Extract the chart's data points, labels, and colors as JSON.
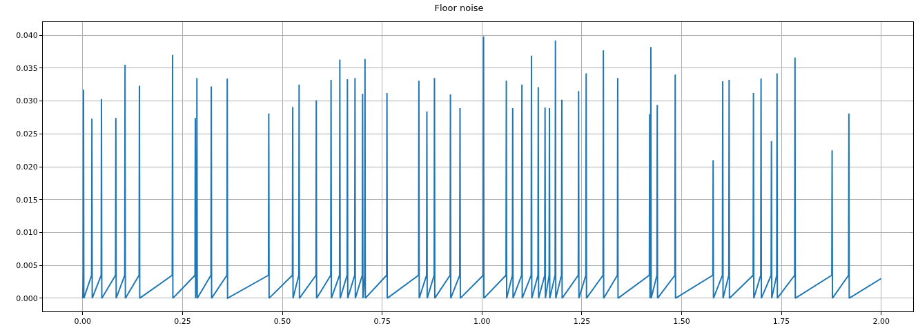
{
  "chart_data": {
    "type": "line",
    "title": "Floor noise",
    "x": [
      0.0,
      0.0012,
      0.002,
      0.0028,
      0.0222,
      0.023,
      0.0238,
      0.0462,
      0.047,
      0.0478,
      0.0822,
      0.083,
      0.0838,
      0.1052,
      0.106,
      0.1068,
      0.1412,
      0.142,
      0.1428,
      0.2242,
      0.225,
      0.2258,
      0.2812,
      0.282,
      0.2828,
      0.2852,
      0.286,
      0.2868,
      0.3212,
      0.322,
      0.3228,
      0.3612,
      0.362,
      0.3628,
      0.4652,
      0.466,
      0.4668,
      0.5252,
      0.526,
      0.5268,
      0.5412,
      0.542,
      0.5428,
      0.5842,
      0.585,
      0.5858,
      0.6212,
      0.622,
      0.6228,
      0.6432,
      0.644,
      0.6448,
      0.6622,
      0.663,
      0.6638,
      0.6812,
      0.682,
      0.6828,
      0.7002,
      0.701,
      0.7018,
      0.7062,
      0.707,
      0.7078,
      0.7612,
      0.762,
      0.7628,
      0.8412,
      0.842,
      0.8428,
      0.8612,
      0.862,
      0.8628,
      0.8802,
      0.881,
      0.8818,
      0.9202,
      0.921,
      0.9218,
      0.9442,
      0.945,
      0.9458,
      1.0032,
      1.004,
      1.0048,
      1.0602,
      1.061,
      1.0618,
      1.0762,
      1.077,
      1.0778,
      1.0992,
      1.1,
      1.1008,
      1.1232,
      1.124,
      1.1248,
      1.1402,
      1.141,
      1.1418,
      1.1572,
      1.158,
      1.1588,
      1.1682,
      1.169,
      1.1698,
      1.1832,
      1.184,
      1.1848,
      1.1992,
      1.2,
      1.2008,
      1.2412,
      1.242,
      1.2428,
      1.2602,
      1.261,
      1.2618,
      1.3032,
      1.304,
      1.3048,
      1.3392,
      1.34,
      1.3408,
      1.4192,
      1.42,
      1.4208,
      1.4222,
      1.423,
      1.4238,
      1.4382,
      1.439,
      1.4398,
      1.4832,
      1.484,
      1.4848,
      1.5782,
      1.579,
      1.5798,
      1.6022,
      1.603,
      1.6038,
      1.6182,
      1.619,
      1.6198,
      1.6792,
      1.68,
      1.6808,
      1.6982,
      1.699,
      1.6998,
      1.7242,
      1.725,
      1.7258,
      1.7382,
      1.739,
      1.7398,
      1.7832,
      1.784,
      1.7848,
      1.8762,
      1.877,
      1.8778,
      1.9182,
      1.919,
      1.9198,
      2.0
    ],
    "series": [
      {
        "color": "#1f77b4",
        "values": [
          0.0,
          0.0035,
          0.0317,
          0.0,
          0.0035,
          0.0273,
          0.0,
          0.0035,
          0.0303,
          0.0,
          0.0035,
          0.0274,
          0.0,
          0.0035,
          0.0355,
          0.0,
          0.0035,
          0.0323,
          0.0,
          0.0035,
          0.037,
          0.0,
          0.0035,
          0.0274,
          0.0,
          0.0035,
          0.0335,
          0.0,
          0.0035,
          0.0322,
          0.0,
          0.0035,
          0.0334,
          0.0,
          0.0035,
          0.0281,
          0.0,
          0.0035,
          0.0291,
          0.0,
          0.0035,
          0.0325,
          0.0,
          0.0035,
          0.0301,
          0.0,
          0.0035,
          0.0332,
          0.0,
          0.0035,
          0.0363,
          0.0,
          0.0035,
          0.0333,
          0.0,
          0.0035,
          0.0335,
          0.0,
          0.0035,
          0.0311,
          0.0,
          0.0035,
          0.0364,
          0.0,
          0.0035,
          0.0312,
          0.0,
          0.0035,
          0.0331,
          0.0,
          0.0035,
          0.0284,
          0.0,
          0.0035,
          0.0335,
          0.0,
          0.0035,
          0.031,
          0.0,
          0.0035,
          0.0289,
          0.0,
          0.0035,
          0.0398,
          0.0,
          0.0035,
          0.0331,
          0.0,
          0.0035,
          0.0289,
          0.0,
          0.0035,
          0.0325,
          0.0,
          0.0035,
          0.0369,
          0.0,
          0.0035,
          0.0321,
          0.0,
          0.0035,
          0.029,
          0.0,
          0.0035,
          0.0289,
          0.0,
          0.0035,
          0.0392,
          0.0,
          0.0035,
          0.0302,
          0.0,
          0.0035,
          0.0315,
          0.0,
          0.0035,
          0.0342,
          0.0,
          0.0035,
          0.0377,
          0.0,
          0.0035,
          0.0335,
          0.0,
          0.0035,
          0.028,
          0.0,
          0.0035,
          0.0382,
          0.0,
          0.0035,
          0.0294,
          0.0,
          0.0035,
          0.034,
          0.0,
          0.0035,
          0.021,
          0.0,
          0.0035,
          0.033,
          0.0,
          0.0035,
          0.0332,
          0.0,
          0.0035,
          0.0312,
          0.0,
          0.0035,
          0.0334,
          0.0,
          0.0035,
          0.0239,
          0.0,
          0.0035,
          0.0342,
          0.0,
          0.0035,
          0.0366,
          0.0,
          0.0035,
          0.0225,
          0.0,
          0.0035,
          0.0281,
          0.0,
          0.003
        ]
      }
    ],
    "xlim": [
      -0.1,
      2.08
    ],
    "xticks": [
      {
        "value": 0,
        "label": "0.00"
      },
      {
        "value": 0.25,
        "label": "0.25"
      },
      {
        "value": 0.5,
        "label": "0.50"
      },
      {
        "value": 0.75,
        "label": "0.75"
      },
      {
        "value": 1,
        "label": "1.00"
      },
      {
        "value": 1.25,
        "label": "1.25"
      },
      {
        "value": 1.5,
        "label": "1.50"
      },
      {
        "value": 1.75,
        "label": "1.75"
      },
      {
        "value": 2,
        "label": "2.00"
      }
    ],
    "ylim": [
      -0.002,
      0.042
    ],
    "yticks": [
      {
        "value": 0,
        "label": "0.000"
      },
      {
        "value": 0.005,
        "label": "0.005"
      },
      {
        "value": 0.01,
        "label": "0.010"
      },
      {
        "value": 0.015,
        "label": "0.015"
      },
      {
        "value": 0.02,
        "label": "0.020"
      },
      {
        "value": 0.025,
        "label": "0.025"
      },
      {
        "value": 0.03,
        "label": "0.030"
      },
      {
        "value": 0.035,
        "label": "0.035"
      },
      {
        "value": 0.04,
        "label": "0.040"
      }
    ],
    "grid": true,
    "line_style": "solid"
  }
}
